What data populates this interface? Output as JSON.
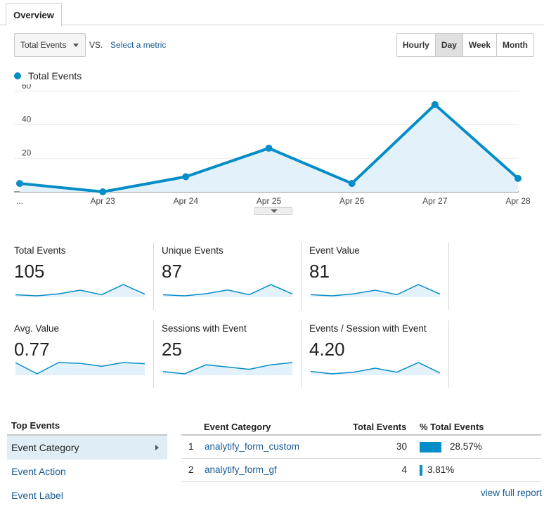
{
  "tabs": {
    "overview": "Overview"
  },
  "toolbar": {
    "metric_select": "Total Events",
    "vs": "VS.",
    "select_metric": "Select a metric",
    "periods": [
      "Hourly",
      "Day",
      "Week",
      "Month"
    ],
    "active_period": "Day"
  },
  "chart_data": {
    "type": "area",
    "title": "",
    "xlabel": "",
    "ylabel": "",
    "categories": [
      "...",
      "Apr 23",
      "Apr 24",
      "Apr 25",
      "Apr 26",
      "Apr 27",
      "Apr 28"
    ],
    "series": [
      {
        "name": "Total Events",
        "values": [
          5,
          0,
          9,
          26,
          5,
          52,
          8
        ]
      }
    ],
    "yticks": [
      20,
      40,
      60
    ],
    "ylim": [
      0,
      62
    ],
    "grid": true,
    "legend": "top-left",
    "color": "#058dc7"
  },
  "scorecards": [
    {
      "label": "Total Events",
      "value": "105",
      "spark": [
        5,
        0,
        9,
        26,
        5,
        52,
        8
      ]
    },
    {
      "label": "Unique Events",
      "value": "87",
      "spark": [
        4,
        0,
        8,
        22,
        4,
        42,
        7
      ]
    },
    {
      "label": "Event Value",
      "value": "81",
      "spark": [
        4,
        0,
        7,
        20,
        4,
        40,
        6
      ]
    },
    {
      "label": "Avg. Value",
      "value": "0.77",
      "spark": [
        0.8,
        0.5,
        0.8,
        0.78,
        0.7,
        0.8,
        0.77
      ]
    },
    {
      "label": "Sessions with Event",
      "value": "25",
      "spark": [
        2,
        1,
        5,
        4,
        3,
        5,
        6
      ]
    },
    {
      "label": "Events / Session with Event",
      "value": "4.20",
      "spark": [
        2.5,
        1,
        2,
        4.5,
        2,
        8,
        1.5
      ]
    }
  ],
  "top_events": {
    "title": "Top Events",
    "items": [
      "Event Category",
      "Event Action",
      "Event Label"
    ],
    "active": "Event Category"
  },
  "table": {
    "headers": {
      "category": "Event Category",
      "total": "Total Events",
      "pct": "% Total Events"
    },
    "rows": [
      {
        "index": "1",
        "category": "analytify_form_custom",
        "total": "30",
        "pct": "28.57%",
        "share": 28.57
      },
      {
        "index": "2",
        "category": "analytify_form_gf",
        "total": "4",
        "pct": "3.81%",
        "share": 3.81
      }
    ],
    "view_full_report": "view full report"
  },
  "colors": {
    "accent": "#058dc7",
    "area_fill": "#e3f1fa",
    "link": "#1a5d96"
  }
}
